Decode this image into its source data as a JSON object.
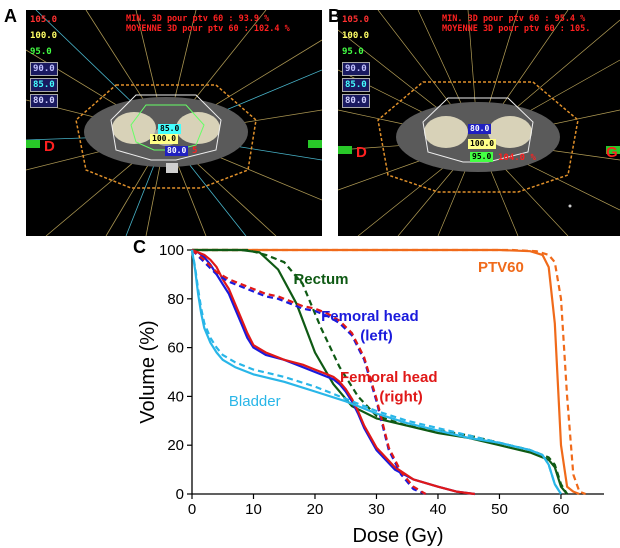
{
  "panels": {
    "a": {
      "label": "A",
      "min_text": "MIN. 3D pour ptv 60 : 93.9 %",
      "mean_text": "MOYENNE 3D pour ptv 60 : 102.4 %",
      "isodoses": [
        {
          "text": "105.0",
          "color": "#ff3030"
        },
        {
          "text": "100.0",
          "color": "#ffff66"
        },
        {
          "text": "95.0",
          "color": "#44ff44"
        },
        {
          "text": "90.0",
          "color": "#c0c0ff"
        },
        {
          "text": "85.0",
          "color": "#44ffff"
        },
        {
          "text": "80.0",
          "color": "#d0d0ff"
        }
      ],
      "left_side": "D",
      "inner_boxes": [
        {
          "text": "85.0",
          "color": "#000000",
          "bg": "#44ffff"
        },
        {
          "text": "100.0",
          "color": "#000000",
          "bg": "#ffff88"
        },
        {
          "text": "80.0",
          "color": "#ffffff",
          "bg": "#2020c0"
        }
      ],
      "inner_extra": "5"
    },
    "b": {
      "label": "B",
      "min_text": "MIN. 3D pour ptv 60 : 95.4 %",
      "mean_text": "MOYENNE 3D pour ptv 60 : 105.",
      "isodoses": [
        {
          "text": "105.0",
          "color": "#ff3030"
        },
        {
          "text": "100.0",
          "color": "#ffff66"
        },
        {
          "text": "95.0",
          "color": "#44ff44"
        },
        {
          "text": "90.0",
          "color": "#c0c0ff"
        },
        {
          "text": "85.0",
          "color": "#44ffff"
        },
        {
          "text": "80.0",
          "color": "#d0d0ff"
        }
      ],
      "left_side": "D",
      "right_side": "G",
      "inner_boxes": [
        {
          "text": "80.0",
          "color": "#ffffff",
          "bg": "#2020c0"
        },
        {
          "text": "100.0",
          "color": "#000000",
          "bg": "#ffff88"
        },
        {
          "text": "95.0",
          "color": "#000000",
          "bg": "#44ff44"
        }
      ],
      "inner_extra": "104.0 %"
    },
    "c": {
      "label": "C"
    }
  },
  "chart_data": {
    "type": "line",
    "xlabel": "Dose (Gy)",
    "ylabel": "Volume (%)",
    "xlim": [
      0,
      67
    ],
    "ylim": [
      0,
      100
    ],
    "xticks": [
      0,
      10,
      20,
      30,
      40,
      50,
      60
    ],
    "yticks": [
      0,
      20,
      40,
      60,
      80,
      100
    ],
    "annotations": [
      {
        "text": "PTV60",
        "color": "#f06a1a"
      },
      {
        "text": "Rectum",
        "color": "#0f5a14"
      },
      {
        "text": "Femoral head",
        "color": "#1a1adc"
      },
      {
        "text": "(left)",
        "color": "#1a1adc"
      },
      {
        "text": "Femoral head",
        "color": "#e01818"
      },
      {
        "text": "(right)",
        "color": "#e01818"
      },
      {
        "text": "Bladder",
        "color": "#29b6e8"
      }
    ],
    "series": [
      {
        "color": "#f06a1a",
        "dashed": false,
        "x": [
          0,
          50,
          55,
          57,
          58,
          59,
          60,
          61,
          62,
          63
        ],
        "y": [
          100,
          100,
          99.5,
          98,
          93,
          70,
          20,
          3,
          1,
          0
        ]
      },
      {
        "color": "#f06a1a",
        "dashed": true,
        "x": [
          0,
          52,
          56,
          58,
          59,
          60,
          61,
          62,
          63,
          64
        ],
        "y": [
          100,
          100,
          99.5,
          98,
          95,
          80,
          40,
          8,
          1,
          0
        ]
      },
      {
        "color": "#0f5a14",
        "dashed": false,
        "x": [
          0,
          8,
          11,
          14,
          17,
          20,
          23,
          26,
          30,
          35,
          40,
          45,
          50,
          55,
          58,
          59,
          60,
          61
        ],
        "y": [
          100,
          100,
          99,
          92,
          78,
          58,
          45,
          36,
          31,
          28,
          25,
          23,
          20,
          17,
          14,
          11,
          3,
          0
        ]
      },
      {
        "color": "#0f5a14",
        "dashed": true,
        "x": [
          0,
          9,
          12,
          15,
          18,
          21,
          24,
          27,
          30,
          35,
          40,
          45,
          50,
          55,
          58,
          59,
          60,
          61
        ],
        "y": [
          100,
          100,
          98,
          95,
          86,
          68,
          52,
          40,
          32,
          28,
          26,
          24,
          21,
          18,
          15,
          12,
          4,
          0
        ]
      },
      {
        "color": "#1a1adc",
        "dashed": false,
        "x": [
          0,
          1,
          2,
          3,
          4,
          5,
          6,
          7,
          8,
          9,
          10,
          12,
          15,
          18,
          20,
          22,
          23,
          24,
          25,
          26,
          27,
          28,
          30,
          33,
          36,
          40,
          43,
          46
        ],
        "y": [
          100,
          99,
          97,
          94,
          90,
          86,
          82,
          76,
          70,
          64,
          60,
          57,
          55,
          52,
          50,
          48,
          47,
          45,
          42,
          38,
          33,
          27,
          18,
          10,
          6,
          3,
          1,
          0
        ]
      },
      {
        "color": "#e01818",
        "dashed": false,
        "x": [
          0,
          1,
          2,
          3,
          4,
          5,
          6,
          7,
          8,
          9,
          10,
          12,
          15,
          18,
          20,
          22,
          23,
          24,
          25,
          26,
          27,
          28,
          30,
          33,
          36,
          40,
          43,
          46
        ],
        "y": [
          100,
          99,
          98,
          96,
          93,
          88,
          84,
          78,
          72,
          66,
          61,
          58,
          55,
          53,
          51,
          49,
          48,
          46,
          43,
          39,
          34,
          28,
          19,
          11,
          6,
          3,
          1,
          0
        ]
      },
      {
        "color": "#1a1adc",
        "dashed": true,
        "x": [
          0,
          2,
          4,
          6,
          8,
          10,
          12,
          14,
          16,
          18,
          20,
          22,
          24,
          26,
          28,
          30,
          32,
          34,
          36,
          38
        ],
        "y": [
          100,
          95,
          90,
          87,
          85,
          83,
          81,
          80,
          78,
          76,
          75,
          73,
          70,
          65,
          55,
          38,
          18,
          8,
          2,
          0
        ]
      },
      {
        "color": "#e01818",
        "dashed": true,
        "x": [
          0,
          2,
          4,
          6,
          8,
          10,
          12,
          14,
          16,
          18,
          20,
          22,
          24,
          26,
          28,
          30,
          32,
          34,
          36,
          38
        ],
        "y": [
          100,
          96,
          91,
          88,
          86,
          84,
          82,
          81,
          79,
          77,
          76,
          74,
          71,
          66,
          56,
          39,
          19,
          9,
          3,
          0
        ]
      },
      {
        "color": "#29b6e8",
        "dashed": false,
        "x": [
          0,
          0.5,
          1,
          1.5,
          2,
          3,
          4,
          5,
          7,
          10,
          15,
          20,
          25,
          30,
          35,
          40,
          45,
          50,
          55,
          57,
          58,
          59,
          60
        ],
        "y": [
          100,
          92,
          82,
          74,
          68,
          62,
          58,
          55,
          52,
          49,
          46,
          42,
          38,
          33,
          29,
          26,
          23,
          21,
          18,
          16,
          12,
          4,
          0
        ]
      },
      {
        "color": "#29b6e8",
        "dashed": true,
        "x": [
          0,
          0.5,
          1,
          1.5,
          2,
          3,
          4,
          5,
          7,
          10,
          15,
          20,
          25,
          30,
          35,
          40,
          45,
          50,
          55,
          57,
          58,
          59,
          60
        ],
        "y": [
          100,
          93,
          84,
          76,
          70,
          64,
          60,
          57,
          54,
          51,
          48,
          44,
          39,
          34,
          30,
          27,
          24,
          21,
          18,
          16,
          12,
          4,
          0
        ]
      }
    ]
  }
}
